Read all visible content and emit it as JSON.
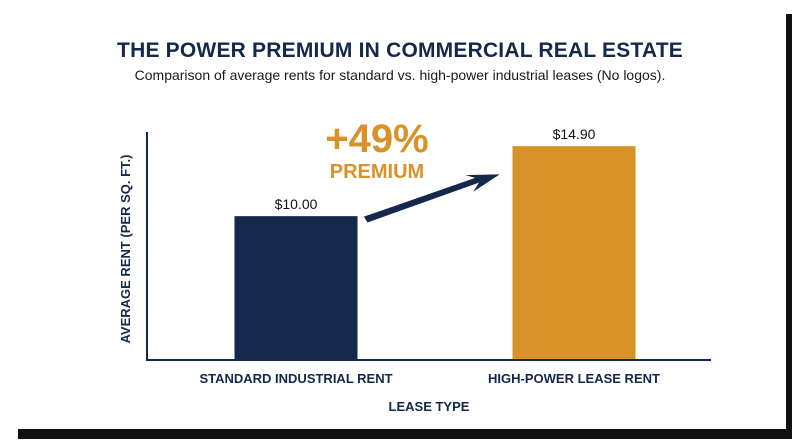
{
  "chart_data": {
    "type": "bar",
    "title": "THE POWER PREMIUM IN COMMERCIAL REAL ESTATE",
    "subtitle": "Comparison of average rents for standard vs. high-power industrial leases (No logos).",
    "xlabel": "LEASE TYPE",
    "ylabel": "AVERAGE RENT (PER SQ. FT.)",
    "categories": [
      "STANDARD INDUSTRIAL RENT",
      "HIGH-POWER LEASE RENT"
    ],
    "values": [
      10.0,
      14.9
    ],
    "data_labels": [
      "$10.00",
      "$14.90"
    ],
    "colors": [
      "#14284b",
      "#d99228"
    ],
    "ylim": [
      0,
      17.5
    ],
    "grid": false,
    "annotation": {
      "value": "+49%",
      "label": "PREMIUM",
      "color": "#d99228",
      "arrow_color": "#14284b"
    }
  }
}
